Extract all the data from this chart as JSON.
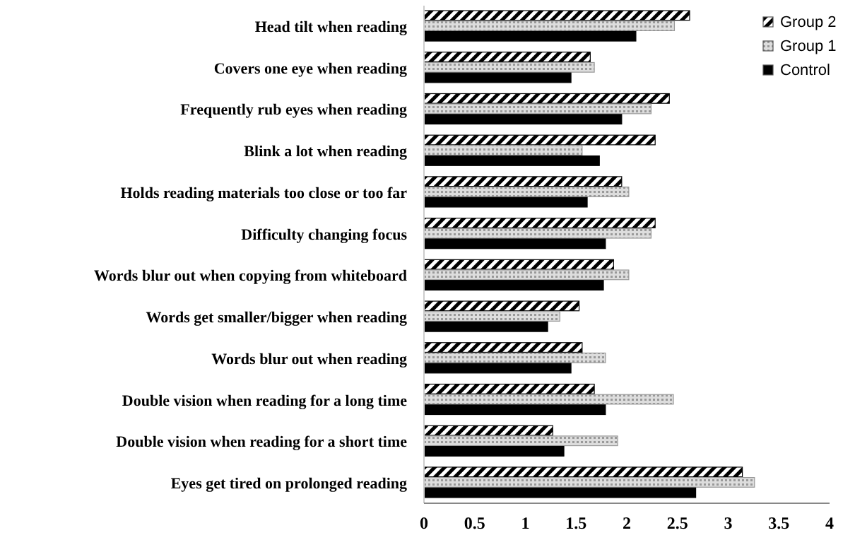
{
  "chart_data": {
    "type": "bar",
    "orientation": "horizontal",
    "categories": [
      "Head tilt when reading",
      "Covers one eye when reading",
      "Frequently rub eyes when reading",
      "Blink a lot when reading",
      "Holds reading materials too close or too far",
      "Difficulty changing focus",
      "Words blur out when copying from whiteboard",
      "Words get smaller/bigger when reading",
      "Words blur out when reading",
      "Double vision when reading for a long time",
      "Double vision when reading for a short time",
      "Eyes get tired on prolonged reading"
    ],
    "series": [
      {
        "name": "Group 2",
        "color": "#000000",
        "values": [
          2.62,
          1.64,
          2.42,
          2.28,
          1.95,
          2.28,
          1.87,
          1.53,
          1.56,
          1.68,
          1.27,
          3.14
        ]
      },
      {
        "name": "Group 1",
        "color": "#999999",
        "values": [
          2.47,
          1.68,
          2.24,
          1.56,
          2.02,
          2.24,
          2.02,
          1.34,
          1.79,
          2.46,
          1.91,
          3.26
        ]
      },
      {
        "name": "Control",
        "color": "#000000",
        "values": [
          2.09,
          1.45,
          1.95,
          1.73,
          1.61,
          1.79,
          1.77,
          1.22,
          1.45,
          1.79,
          1.38,
          2.68
        ]
      }
    ],
    "xlim": [
      0,
      4
    ],
    "xticks": [
      0,
      0.5,
      1,
      1.5,
      2,
      2.5,
      3,
      3.5,
      4
    ],
    "grid": false,
    "legend": "top right"
  }
}
